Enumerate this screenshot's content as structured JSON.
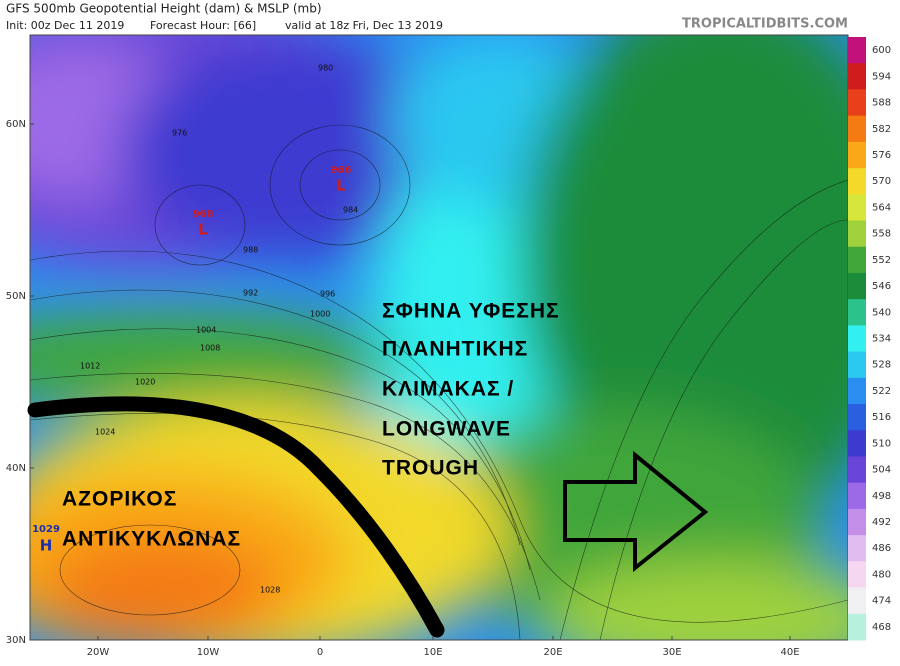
{
  "header": {
    "title": "GFS 500mb Geopotential Height (dam) & MSLP (mb)",
    "init": "Init: 00z Dec 11 2019",
    "forecast_hour": "Forecast Hour: [66]",
    "valid": "valid at 18z Fri, Dec 13 2019",
    "source": "TROPICALTIDBITS.COM"
  },
  "map": {
    "lat_labels": [
      "60N",
      "50N",
      "40N",
      "30N"
    ],
    "lon_labels": [
      "20W",
      "10W",
      "0",
      "10E",
      "20E",
      "30E",
      "40E"
    ],
    "pressure_centers": [
      {
        "value": "968",
        "symbol": "L"
      },
      {
        "value": "966",
        "symbol": "L"
      },
      {
        "value": "1029",
        "symbol": "H"
      }
    ],
    "contour_labels": [
      "980",
      "976",
      "984",
      "988",
      "992",
      "996",
      "1000",
      "1004",
      "1008",
      "1012",
      "1020",
      "1024",
      "1028"
    ]
  },
  "annotations": {
    "trough": [
      "ΣΦΗΝΑ ΥΦΕΣΗΣ",
      "ΠΛΑΝΗΤΙΚΗΣ",
      "ΚΛΙΜΑΚΑΣ /",
      "LONGWAVE",
      "TROUGH"
    ],
    "high": [
      "ΑΖΟΡΙΚΟΣ",
      "ΑΝΤΙΚΥΚΛΩΝΑΣ"
    ]
  },
  "colorbar": {
    "levels": [
      {
        "value": 600,
        "color": "#c2117a"
      },
      {
        "value": 594,
        "color": "#d01c1c"
      },
      {
        "value": 588,
        "color": "#e8401a"
      },
      {
        "value": 582,
        "color": "#f47a12"
      },
      {
        "value": 576,
        "color": "#f9a917"
      },
      {
        "value": 570,
        "color": "#f2d92a"
      },
      {
        "value": 564,
        "color": "#d6e63a"
      },
      {
        "value": 558,
        "color": "#9fd13d"
      },
      {
        "value": 552,
        "color": "#3fa63a"
      },
      {
        "value": 546,
        "color": "#1d8c3a"
      },
      {
        "value": 540,
        "color": "#2cc28b"
      },
      {
        "value": 534,
        "color": "#33f0f0"
      },
      {
        "value": 528,
        "color": "#2bc8f0"
      },
      {
        "value": 522,
        "color": "#2a8ef0"
      },
      {
        "value": 516,
        "color": "#2a5fe0"
      },
      {
        "value": 510,
        "color": "#3d3ad0"
      },
      {
        "value": 504,
        "color": "#6a46d8"
      },
      {
        "value": 498,
        "color": "#9c6ae6"
      },
      {
        "value": 492,
        "color": "#c28ee8"
      },
      {
        "value": 486,
        "color": "#e0bcf0"
      },
      {
        "value": 480,
        "color": "#f5d7f2"
      },
      {
        "value": 474,
        "color": "#f0eff2"
      },
      {
        "value": 468,
        "color": "#b7f0dc"
      }
    ]
  }
}
